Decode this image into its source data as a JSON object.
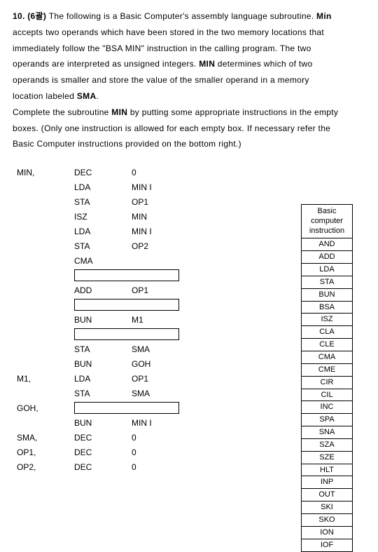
{
  "problem": {
    "number": "10. (6괄)",
    "lines": [
      "The following is a Basic Computer's assembly language subroutine. <b>Min</b>",
      "accepts two operands which have been stored in the two memory locations that",
      "immediately follow the \"BSA MIN\" instruction in the calling program. The two",
      "operands are interpreted as unsigned integers. <b>MIN</b> determines which of two",
      "operands is smaller and store the value of the smaller operand in a memory",
      "location labeled <b>SMA</b>.",
      "Complete the subroutine <b>MIN</b> by putting some appropriate instructions in the empty",
      "boxes. (Only one instruction is allowed for each empty box. If necessary refer the",
      "Basic Computer instructions provided on the bottom right.)"
    ]
  },
  "code_rows": [
    {
      "label": "MIN,",
      "op": "DEC",
      "arg": "0"
    },
    {
      "label": "",
      "op": "LDA",
      "arg": "MIN I"
    },
    {
      "label": "",
      "op": "STA",
      "arg": "OP1"
    },
    {
      "label": "",
      "op": "ISZ",
      "arg": "MIN"
    },
    {
      "label": "",
      "op": "LDA",
      "arg": "MIN I"
    },
    {
      "label": "",
      "op": "STA",
      "arg": "OP2"
    },
    {
      "label": "",
      "op": "CMA",
      "arg": ""
    },
    {
      "label": "",
      "empty": true
    },
    {
      "label": "",
      "op": "ADD",
      "arg": "OP1"
    },
    {
      "label": "",
      "empty": true
    },
    {
      "label": "",
      "op": "BUN",
      "arg": "M1"
    },
    {
      "label": "",
      "empty": true
    },
    {
      "label": "",
      "op": "STA",
      "arg": "SMA"
    },
    {
      "label": "",
      "op": "BUN",
      "arg": "GOH"
    },
    {
      "label": "M1,",
      "op": "LDA",
      "arg": "OP1"
    },
    {
      "label": "",
      "op": "STA",
      "arg": "SMA"
    },
    {
      "label": "GOH,",
      "empty": true
    },
    {
      "label": "",
      "op": "BUN",
      "arg": "MIN I"
    },
    {
      "label": "SMA,",
      "op": "DEC",
      "arg": "0"
    },
    {
      "label": "OP1,",
      "op": "DEC",
      "arg": "0"
    },
    {
      "label": "OP2,",
      "op": "DEC",
      "arg": "0"
    }
  ],
  "instruction_box": {
    "header": [
      "Basic",
      "computer",
      "instruction"
    ],
    "items": [
      "AND",
      "ADD",
      "LDA",
      "STA",
      "BUN",
      "BSA",
      "ISZ",
      "CLA",
      "CLE",
      "CMA",
      "CME",
      "CIR",
      "CIL",
      "INC",
      "SPA",
      "SNA",
      "SZA",
      "SZE",
      "HLT",
      "INP",
      "OUT",
      "SKI",
      "SKO",
      "ION",
      "IOF"
    ]
  }
}
